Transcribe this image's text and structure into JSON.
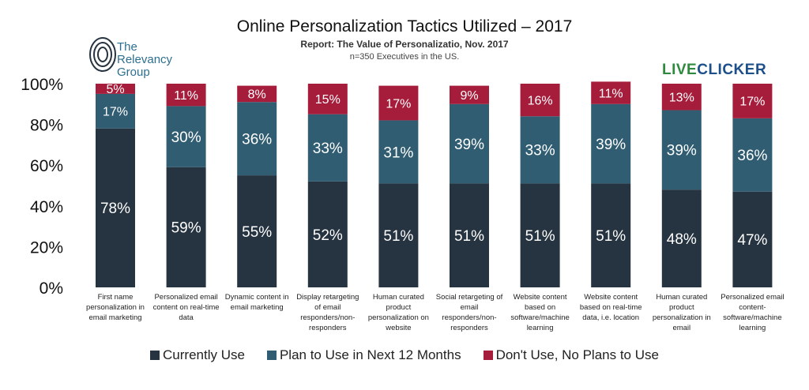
{
  "chart_data": {
    "type": "bar",
    "stacked": true,
    "title": "Online Personalization Tactics Utilized – 2017",
    "subtitle": "Report: The Value of Personalizatio, Nov. 2017",
    "note": "n=350 Executives in the US.",
    "ylim": [
      0,
      100
    ],
    "yticks": [
      "0%",
      "20%",
      "40%",
      "60%",
      "80%",
      "100%"
    ],
    "categories": [
      "First name personalization in email marketing",
      "Personalized email content on real-time data",
      "Dynamic content in email marketing",
      "Display retargeting of email responders/non-responders",
      "Human curated product personalization on website",
      "Social retargeting of email responders/non-responders",
      "Website content based on software/machine learning",
      "Website content based on real-time data, i.e. location",
      "Human curated product personalization in email",
      "Personalized email content-software/machine learning"
    ],
    "series": [
      {
        "name": "Currently Use",
        "color": "#263340",
        "values": [
          78,
          59,
          55,
          52,
          51,
          51,
          51,
          51,
          48,
          47
        ]
      },
      {
        "name": "Plan to Use in Next 12 Months",
        "color": "#305d72",
        "values": [
          17,
          30,
          36,
          33,
          31,
          39,
          33,
          39,
          39,
          36
        ]
      },
      {
        "name": "Don't Use, No Plans to Use",
        "color": "#a61c3b",
        "values": [
          5,
          11,
          8,
          15,
          17,
          9,
          16,
          11,
          13,
          17
        ]
      }
    ],
    "legend_position": "bottom",
    "grid": false
  },
  "logos": {
    "relevancy": "The Relevancy Group",
    "liveclicker": "LIVECLICKER"
  }
}
